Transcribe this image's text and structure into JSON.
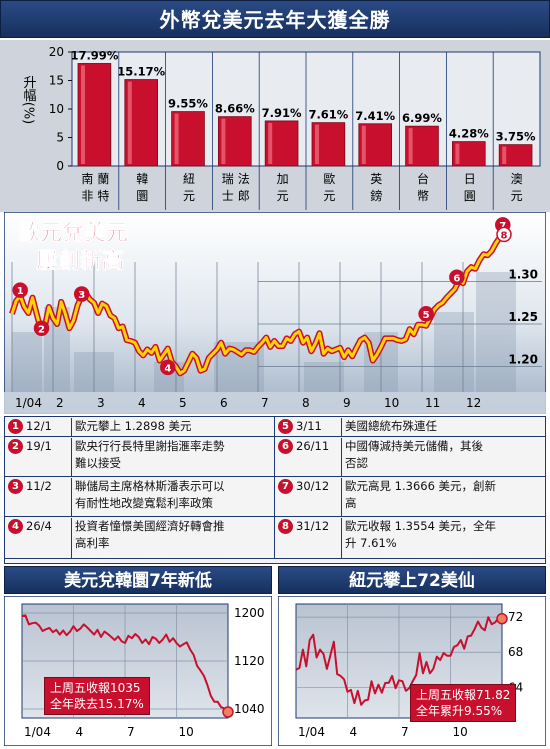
{
  "top_title": "外幣兌美元去年大獲全勝",
  "ylabel": "升幅(%)",
  "bar_chart": {
    "type": "bar",
    "categories": [
      "南非蘭特",
      "韓圜",
      "紐元",
      "瑞士法郎",
      "加元",
      "歐元",
      "英鎊",
      "台幣",
      "日圓",
      "澳元"
    ],
    "category_lines": [
      [
        "南",
        "非"
      ],
      [
        "蘭",
        "特"
      ],
      [
        "韓",
        "圜"
      ],
      [
        "紐",
        "元"
      ],
      [
        "瑞",
        "士"
      ],
      [
        "法",
        "郎"
      ],
      [
        "加",
        "元"
      ],
      [
        "歐",
        "元"
      ],
      [
        "英",
        "鎊"
      ],
      [
        "台",
        "幣"
      ],
      [
        "日",
        "圓"
      ],
      [
        "澳",
        "元"
      ]
    ],
    "values": [
      17.99,
      15.17,
      9.55,
      8.66,
      7.91,
      7.61,
      7.41,
      6.99,
      4.28,
      3.75
    ],
    "value_labels": [
      "17.99%",
      "15.17%",
      "9.55%",
      "8.66%",
      "7.91%",
      "7.61%",
      "7.41%",
      "6.99%",
      "4.28%",
      "3.75%"
    ],
    "yticks": [
      "20",
      "15",
      "10",
      "5",
      "0"
    ],
    "ylim": [
      0,
      20
    ],
    "bar_color": "#c8102e"
  },
  "chart_data": [
    {
      "type": "line",
      "title": "歐元兌美元屢創新高",
      "title_lines": [
        "歐元兌美元",
        "屢創新高"
      ],
      "x_ticks": [
        "1/04",
        "2",
        "3",
        "4",
        "5",
        "6",
        "7",
        "8",
        "9",
        "10",
        "11",
        "12"
      ],
      "y_ticks": [
        "1.30",
        "1.25",
        "1.20"
      ],
      "ylim": [
        1.17,
        1.37
      ],
      "x_months": [
        0.0,
        0.1,
        0.2,
        0.3,
        0.4,
        0.5,
        0.6,
        0.7,
        0.8,
        0.9,
        1.0,
        1.1,
        1.2,
        1.3,
        1.4,
        1.5,
        1.6,
        1.7,
        1.8,
        1.9,
        2.0,
        2.1,
        2.2,
        2.3,
        2.4,
        2.5,
        2.6,
        2.7,
        2.8,
        2.9,
        3.0,
        3.1,
        3.2,
        3.3,
        3.4,
        3.5,
        3.6,
        3.7,
        3.8,
        3.9,
        4.0,
        4.1,
        4.2,
        4.3,
        4.4,
        4.5,
        4.6,
        4.7,
        4.8,
        4.9,
        5.0,
        5.1,
        5.2,
        5.3,
        5.4,
        5.5,
        5.6,
        5.7,
        5.8,
        5.9,
        6.0,
        6.1,
        6.2,
        6.3,
        6.4,
        6.5,
        6.6,
        6.7,
        6.8,
        6.9,
        7.0,
        7.1,
        7.2,
        7.3,
        7.4,
        7.5,
        7.6,
        7.7,
        7.8,
        7.9,
        8.0,
        8.1,
        8.2,
        8.3,
        8.4,
        8.5,
        8.6,
        8.7,
        8.8,
        8.9,
        9.0,
        9.1,
        9.2,
        9.3,
        9.4,
        9.5,
        9.6,
        9.7,
        9.8,
        9.9,
        10.0,
        10.1,
        10.2,
        10.3,
        10.4,
        10.5,
        10.6,
        10.7,
        10.8,
        10.9,
        11.0,
        11.1,
        11.2,
        11.3,
        11.4,
        11.5,
        11.6,
        11.7,
        11.8,
        11.9,
        12.0
      ],
      "values": [
        1.262,
        1.277,
        1.283,
        1.27,
        1.263,
        1.281,
        1.262,
        1.244,
        1.247,
        1.27,
        1.257,
        1.25,
        1.276,
        1.262,
        1.245,
        1.254,
        1.272,
        1.283,
        1.286,
        1.279,
        1.275,
        1.263,
        1.274,
        1.271,
        1.26,
        1.257,
        1.245,
        1.247,
        1.231,
        1.23,
        1.228,
        1.218,
        1.213,
        1.22,
        1.216,
        1.223,
        1.207,
        1.214,
        1.221,
        1.205,
        1.2,
        1.192,
        1.195,
        1.205,
        1.215,
        1.21,
        1.195,
        1.197,
        1.21,
        1.215,
        1.22,
        1.228,
        1.215,
        1.221,
        1.22,
        1.217,
        1.214,
        1.219,
        1.219,
        1.217,
        1.223,
        1.228,
        1.234,
        1.223,
        1.23,
        1.224,
        1.224,
        1.233,
        1.23,
        1.238,
        1.241,
        1.228,
        1.234,
        1.218,
        1.227,
        1.239,
        1.215,
        1.221,
        1.218,
        1.22,
        1.222,
        1.211,
        1.219,
        1.212,
        1.222,
        1.231,
        1.234,
        1.228,
        1.207,
        1.214,
        1.223,
        1.233,
        1.233,
        1.233,
        1.231,
        1.23,
        1.232,
        1.244,
        1.238,
        1.249,
        1.249,
        1.248,
        1.257,
        1.267,
        1.272,
        1.275,
        1.281,
        1.286,
        1.291,
        1.301,
        1.298,
        1.312,
        1.317,
        1.315,
        1.325,
        1.332,
        1.331,
        1.336,
        1.345,
        1.352,
        1.355
      ],
      "markers": [
        {
          "id": "1",
          "month": 0.2,
          "value": 1.2898
        },
        {
          "id": "2",
          "month": 0.72,
          "value": 1.245
        },
        {
          "id": "3",
          "month": 1.7,
          "value": 1.2853
        },
        {
          "id": "4",
          "month": 3.8,
          "value": 1.199
        },
        {
          "id": "5",
          "month": 10.1,
          "value": 1.262
        },
        {
          "id": "6",
          "month": 10.85,
          "value": 1.305
        },
        {
          "id": "7",
          "month": 11.97,
          "value": 1.3666
        },
        {
          "id": "8",
          "month": 12.0,
          "value": 1.3554
        }
      ]
    },
    {
      "type": "line",
      "title": "美元兌韓圜7年新低",
      "x_ticks": [
        "1/04",
        "4",
        "7",
        "10"
      ],
      "y_ticks": [
        "1200",
        "1120",
        "1040"
      ],
      "ylim": [
        1025,
        1215
      ],
      "x_months": [
        0.0,
        0.2,
        0.4,
        0.6,
        0.8,
        1.0,
        1.2,
        1.4,
        1.6,
        1.8,
        2.0,
        2.2,
        2.4,
        2.6,
        2.8,
        3.0,
        3.2,
        3.4,
        3.6,
        3.8,
        4.0,
        4.2,
        4.4,
        4.6,
        4.8,
        5.0,
        5.2,
        5.4,
        5.6,
        5.8,
        6.0,
        6.2,
        6.4,
        6.6,
        6.8,
        7.0,
        7.2,
        7.4,
        7.6,
        7.8,
        8.0,
        8.2,
        8.4,
        8.6,
        8.8,
        9.0,
        9.2,
        9.4,
        9.6,
        9.8,
        10.0,
        10.2,
        10.4,
        10.6,
        10.8,
        11.0,
        11.2,
        11.4,
        11.6,
        11.8,
        12.0
      ],
      "values": [
        1195,
        1196,
        1181,
        1183,
        1184,
        1179,
        1170,
        1173,
        1175,
        1168,
        1172,
        1164,
        1171,
        1163,
        1169,
        1178,
        1170,
        1174,
        1181,
        1176,
        1170,
        1164,
        1172,
        1160,
        1169,
        1165,
        1160,
        1155,
        1161,
        1153,
        1150,
        1162,
        1158,
        1165,
        1160,
        1150,
        1156,
        1148,
        1160,
        1157,
        1150,
        1156,
        1164,
        1152,
        1158,
        1150,
        1144,
        1148,
        1151,
        1139,
        1130,
        1112,
        1104,
        1095,
        1080,
        1062,
        1052,
        1052,
        1043,
        1041,
        1035
      ],
      "note_lines": [
        "上周五收報1035",
        "全年跌去15.17%"
      ]
    },
    {
      "type": "line",
      "title": "紐元攀上72美仙",
      "x_ticks": [
        "1/04",
        "4",
        "7",
        "10"
      ],
      "y_ticks": [
        "72",
        "68",
        "64"
      ],
      "ylim": [
        60.5,
        73.5
      ],
      "x_months": [
        0.0,
        0.2,
        0.4,
        0.6,
        0.8,
        1.0,
        1.2,
        1.4,
        1.6,
        1.8,
        2.0,
        2.2,
        2.4,
        2.6,
        2.8,
        3.0,
        3.2,
        3.4,
        3.6,
        3.8,
        4.0,
        4.2,
        4.4,
        4.6,
        4.8,
        5.0,
        5.2,
        5.4,
        5.6,
        5.8,
        6.0,
        6.2,
        6.4,
        6.6,
        6.8,
        7.0,
        7.2,
        7.4,
        7.6,
        7.8,
        8.0,
        8.2,
        8.4,
        8.6,
        8.8,
        9.0,
        9.2,
        9.4,
        9.6,
        9.8,
        10.0,
        10.2,
        10.4,
        10.6,
        10.8,
        11.0,
        11.2,
        11.4,
        11.6,
        11.8,
        12.0
      ],
      "values": [
        66.0,
        66.2,
        68.3,
        66.4,
        69.4,
        70.0,
        67.4,
        68.3,
        67.8,
        66.1,
        67.6,
        69.2,
        65.5,
        65.3,
        64.9,
        63.5,
        63.7,
        62.2,
        63.6,
        62.0,
        62.5,
        62.6,
        64.7,
        63.3,
        64.3,
        63.4,
        64.5,
        64.5,
        65.3,
        63.9,
        64.8,
        64.7,
        63.6,
        63.9,
        64.7,
        65.4,
        67.9,
        65.6,
        66.9,
        65.6,
        66.1,
        67.5,
        67.1,
        67.9,
        67.6,
        67.6,
        68.6,
        68.8,
        69.4,
        68.4,
        69.8,
        69.9,
        70.6,
        71.5,
        70.8,
        70.5,
        72.0,
        71.2,
        71.4,
        71.9,
        71.82
      ],
      "note_lines": [
        "上周五收報71.82",
        "全年累升9.55%"
      ]
    }
  ],
  "events": [
    {
      "num": "1",
      "date": "12/1",
      "lines": [
        "歐元攀上 1.2898 美元"
      ]
    },
    {
      "num": "5",
      "date": "3/11",
      "lines": [
        "美國總統布殊連任"
      ]
    },
    {
      "num": "2",
      "date": "19/1",
      "lines": [
        "歐央行行長特里謝指滙率走勢",
        "難以接受"
      ]
    },
    {
      "num": "6",
      "date": "26/11",
      "lines": [
        "中國傳減持美元儲備，其後",
        "否認"
      ]
    },
    {
      "num": "3",
      "date": "11/2",
      "lines": [
        "聯儲局主席格林斯潘表示可以",
        "有耐性地改變寬鬆利率政策"
      ]
    },
    {
      "num": "7",
      "date": "30/12",
      "lines": [
        "歐元高見 1.3666 美元，創新",
        "高"
      ]
    },
    {
      "num": "4",
      "date": "26/4",
      "lines": [
        "投資者憧憬美國經濟好轉會推",
        "高利率"
      ]
    },
    {
      "num": "8",
      "date": "31/12",
      "lines": [
        "歐元收報 1.3554 美元，全年",
        "升 7.61%"
      ]
    }
  ],
  "colors": {
    "navy": "#1d3a70",
    "red": "#c8102e",
    "yellow": "#ffd400",
    "panel_bg": "#cfd4dc"
  }
}
